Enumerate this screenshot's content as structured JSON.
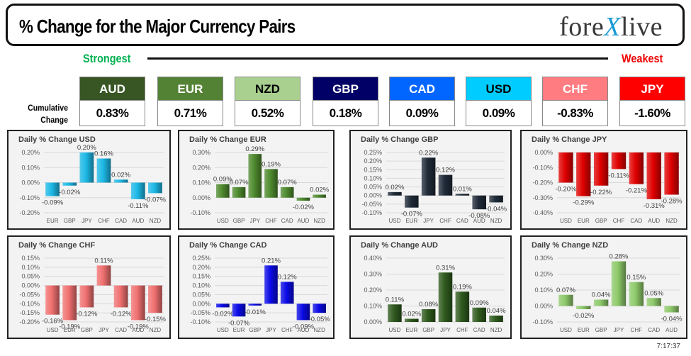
{
  "header": {
    "title": "% Change for the Major Currency Pairs",
    "logo_left": "fore",
    "logo_x": "X",
    "logo_right": "live"
  },
  "strength_bar": {
    "strongest_label": "Strongest",
    "weakest_label": "Weakest",
    "cumulative_label_line1": "Cumulative",
    "cumulative_label_line2": "Change"
  },
  "currencies": [
    {
      "code": "AUD",
      "value": "0.83%",
      "bg": "#375623",
      "fg": "#ffffff"
    },
    {
      "code": "EUR",
      "value": "0.71%",
      "bg": "#548235",
      "fg": "#ffffff"
    },
    {
      "code": "NZD",
      "value": "0.52%",
      "bg": "#a9d08e",
      "fg": "#000000"
    },
    {
      "code": "GBP",
      "value": "0.18%",
      "bg": "#000066",
      "fg": "#ffffff"
    },
    {
      "code": "CAD",
      "value": "0.09%",
      "bg": "#0066ff",
      "fg": "#ffffff"
    },
    {
      "code": "USD",
      "value": "0.09%",
      "bg": "#00ccff",
      "fg": "#000000"
    },
    {
      "code": "CHF",
      "value": "-0.83%",
      "bg": "#ff7c80",
      "fg": "#ffffff"
    },
    {
      "code": "JPY",
      "value": "-1.60%",
      "bg": "#ff0000",
      "fg": "#ffffff"
    }
  ],
  "timestamp": "7:17:37",
  "chart_data": [
    {
      "type": "bar",
      "title": "Daily % Change USD",
      "categories": [
        "EUR",
        "GBP",
        "JPY",
        "CHF",
        "CAD",
        "AUD",
        "NZD"
      ],
      "values": [
        -0.09,
        -0.02,
        0.2,
        0.16,
        0.02,
        -0.11,
        -0.07
      ],
      "labels": [
        "-0.09%",
        "-0.02%",
        "0.20%",
        "0.16%",
        "0.02%",
        "-0.11%",
        "-0.07%"
      ],
      "yticks": [
        0.2,
        0.1,
        0.0,
        -0.1,
        -0.2
      ],
      "ytick_labels": [
        "0.20%",
        "0.10%",
        "0.00%",
        "-0.10%",
        "-0.20%"
      ],
      "ylim": [
        -0.2,
        0.2
      ],
      "grid": true,
      "color": "#1cb8e6",
      "xlabel": "",
      "ylabel": ""
    },
    {
      "type": "bar",
      "title": "Daily % Change EUR",
      "categories": [
        "USD",
        "GBP",
        "JPY",
        "CHF",
        "CAD",
        "AUD",
        "NZD"
      ],
      "values": [
        0.09,
        0.07,
        0.29,
        0.19,
        0.07,
        -0.02,
        0.02
      ],
      "labels": [
        "0.09%",
        "0.07%",
        "0.29%",
        "0.19%",
        "0.07%",
        "-0.02%",
        "0.02%"
      ],
      "yticks": [
        0.3,
        0.2,
        0.1,
        0.0,
        -0.1
      ],
      "ytick_labels": [
        "0.30%",
        "0.20%",
        "0.10%",
        "0.00%",
        "-0.10%"
      ],
      "ylim": [
        -0.1,
        0.3
      ],
      "grid": true,
      "color": "#4e8a2e",
      "xlabel": "",
      "ylabel": ""
    },
    {
      "type": "bar",
      "title": "Daily % Change GBP",
      "categories": [
        "USD",
        "EUR",
        "JPY",
        "CHF",
        "CAD",
        "AUD",
        "NZD"
      ],
      "values": [
        0.02,
        -0.07,
        0.22,
        0.12,
        0.01,
        -0.08,
        -0.04
      ],
      "labels": [
        "0.02%",
        "-0.07%",
        "0.22%",
        "0.12%",
        "0.01%",
        "-0.08%",
        "-0.04%"
      ],
      "yticks": [
        0.25,
        0.2,
        0.15,
        0.1,
        0.05,
        0.0,
        -0.05,
        -0.1
      ],
      "ytick_labels": [
        "0.25%",
        "0.20%",
        "0.15%",
        "0.10%",
        "0.05%",
        "0.00%",
        "-0.05%",
        "-0.10%"
      ],
      "ylim": [
        -0.1,
        0.25
      ],
      "grid": true,
      "color": "#1f2a38",
      "xlabel": "",
      "ylabel": ""
    },
    {
      "type": "bar",
      "title": "Daily % Change JPY",
      "categories": [
        "USD",
        "EUR",
        "GBP",
        "CHF",
        "CAD",
        "AUD",
        "NZD"
      ],
      "values": [
        -0.2,
        -0.29,
        -0.22,
        -0.11,
        -0.21,
        -0.31,
        -0.28
      ],
      "labels": [
        "-0.20%",
        "-0.29%",
        "-0.22%",
        "-0.11%",
        "-0.21%",
        "-0.31%",
        "-0.28%"
      ],
      "yticks": [
        0.0,
        -0.1,
        -0.2,
        -0.3,
        -0.4
      ],
      "ytick_labels": [
        "0.00%",
        "-0.10%",
        "-0.20%",
        "-0.30%",
        "-0.40%"
      ],
      "ylim": [
        -0.4,
        0.0
      ],
      "grid": true,
      "color": "#e00000",
      "xlabel": "",
      "ylabel": ""
    },
    {
      "type": "bar",
      "title": "Daily % Change CHF",
      "categories": [
        "USD",
        "EUR",
        "GBP",
        "JPY",
        "CAD",
        "AUD",
        "NZD"
      ],
      "values": [
        -0.16,
        -0.19,
        -0.12,
        0.11,
        -0.12,
        -0.19,
        -0.15
      ],
      "labels": [
        "-0.16%",
        "-0.19%",
        "-0.12%",
        "0.11%",
        "-0.12%",
        "-0.19%",
        "-0.15%"
      ],
      "yticks": [
        0.15,
        0.1,
        0.05,
        0.0,
        -0.05,
        -0.1,
        -0.15,
        -0.2
      ],
      "ytick_labels": [
        "0.15%",
        "0.10%",
        "0.05%",
        "0.00%",
        "-0.05%",
        "-0.10%",
        "-0.15%",
        "-0.20%"
      ],
      "ylim": [
        -0.2,
        0.15
      ],
      "grid": true,
      "color": "#f07070",
      "xlabel": "",
      "ylabel": ""
    },
    {
      "type": "bar",
      "title": "Daily % Change CAD",
      "categories": [
        "USD",
        "EUR",
        "GBP",
        "JPY",
        "CHF",
        "AUD",
        "NZD"
      ],
      "values": [
        -0.02,
        -0.07,
        -0.01,
        0.21,
        0.12,
        -0.09,
        -0.05
      ],
      "labels": [
        "-0.02%",
        "-0.07%",
        "-0.01%",
        "0.21%",
        "0.12%",
        "-0.09%",
        "-0.05%"
      ],
      "yticks": [
        0.25,
        0.2,
        0.15,
        0.1,
        0.05,
        0.0,
        -0.05,
        -0.1
      ],
      "ytick_labels": [
        "0.25%",
        "0.20%",
        "0.15%",
        "0.10%",
        "0.05%",
        "0.00%",
        "-0.05%",
        "-0.10%"
      ],
      "ylim": [
        -0.1,
        0.25
      ],
      "grid": true,
      "color": "#0a0ae6",
      "xlabel": "",
      "ylabel": ""
    },
    {
      "type": "bar",
      "title": "Daily % Change AUD",
      "categories": [
        "USD",
        "EUR",
        "GBP",
        "JPY",
        "CHF",
        "CAD",
        "NZD"
      ],
      "values": [
        0.11,
        0.02,
        0.08,
        0.31,
        0.19,
        0.09,
        0.04
      ],
      "labels": [
        "0.11%",
        "0.02%",
        "0.08%",
        "0.31%",
        "0.19%",
        "0.09%",
        "0.04%"
      ],
      "yticks": [
        0.4,
        0.3,
        0.2,
        0.1,
        0.0
      ],
      "ytick_labels": [
        "0.40%",
        "0.30%",
        "0.20%",
        "0.10%",
        "0.00%"
      ],
      "ylim": [
        0.0,
        0.4
      ],
      "grid": true,
      "color": "#2f5a1e",
      "xlabel": "",
      "ylabel": ""
    },
    {
      "type": "bar",
      "title": "Daily % Change NZD",
      "categories": [
        "USD",
        "EUR",
        "GBP",
        "JPY",
        "CHF",
        "CAD",
        "AUD"
      ],
      "values": [
        0.07,
        -0.02,
        0.04,
        0.28,
        0.15,
        0.05,
        -0.04
      ],
      "labels": [
        "0.07%",
        "-0.02%",
        "0.04%",
        "0.28%",
        "0.15%",
        "0.05%",
        "-0.04%"
      ],
      "yticks": [
        0.3,
        0.2,
        0.1,
        0.0,
        -0.1
      ],
      "ytick_labels": [
        "0.30%",
        "0.20%",
        "0.10%",
        "0.00%",
        "-0.10%"
      ],
      "ylim": [
        -0.1,
        0.3
      ],
      "grid": true,
      "color": "#8dc96a",
      "xlabel": "",
      "ylabel": ""
    }
  ]
}
